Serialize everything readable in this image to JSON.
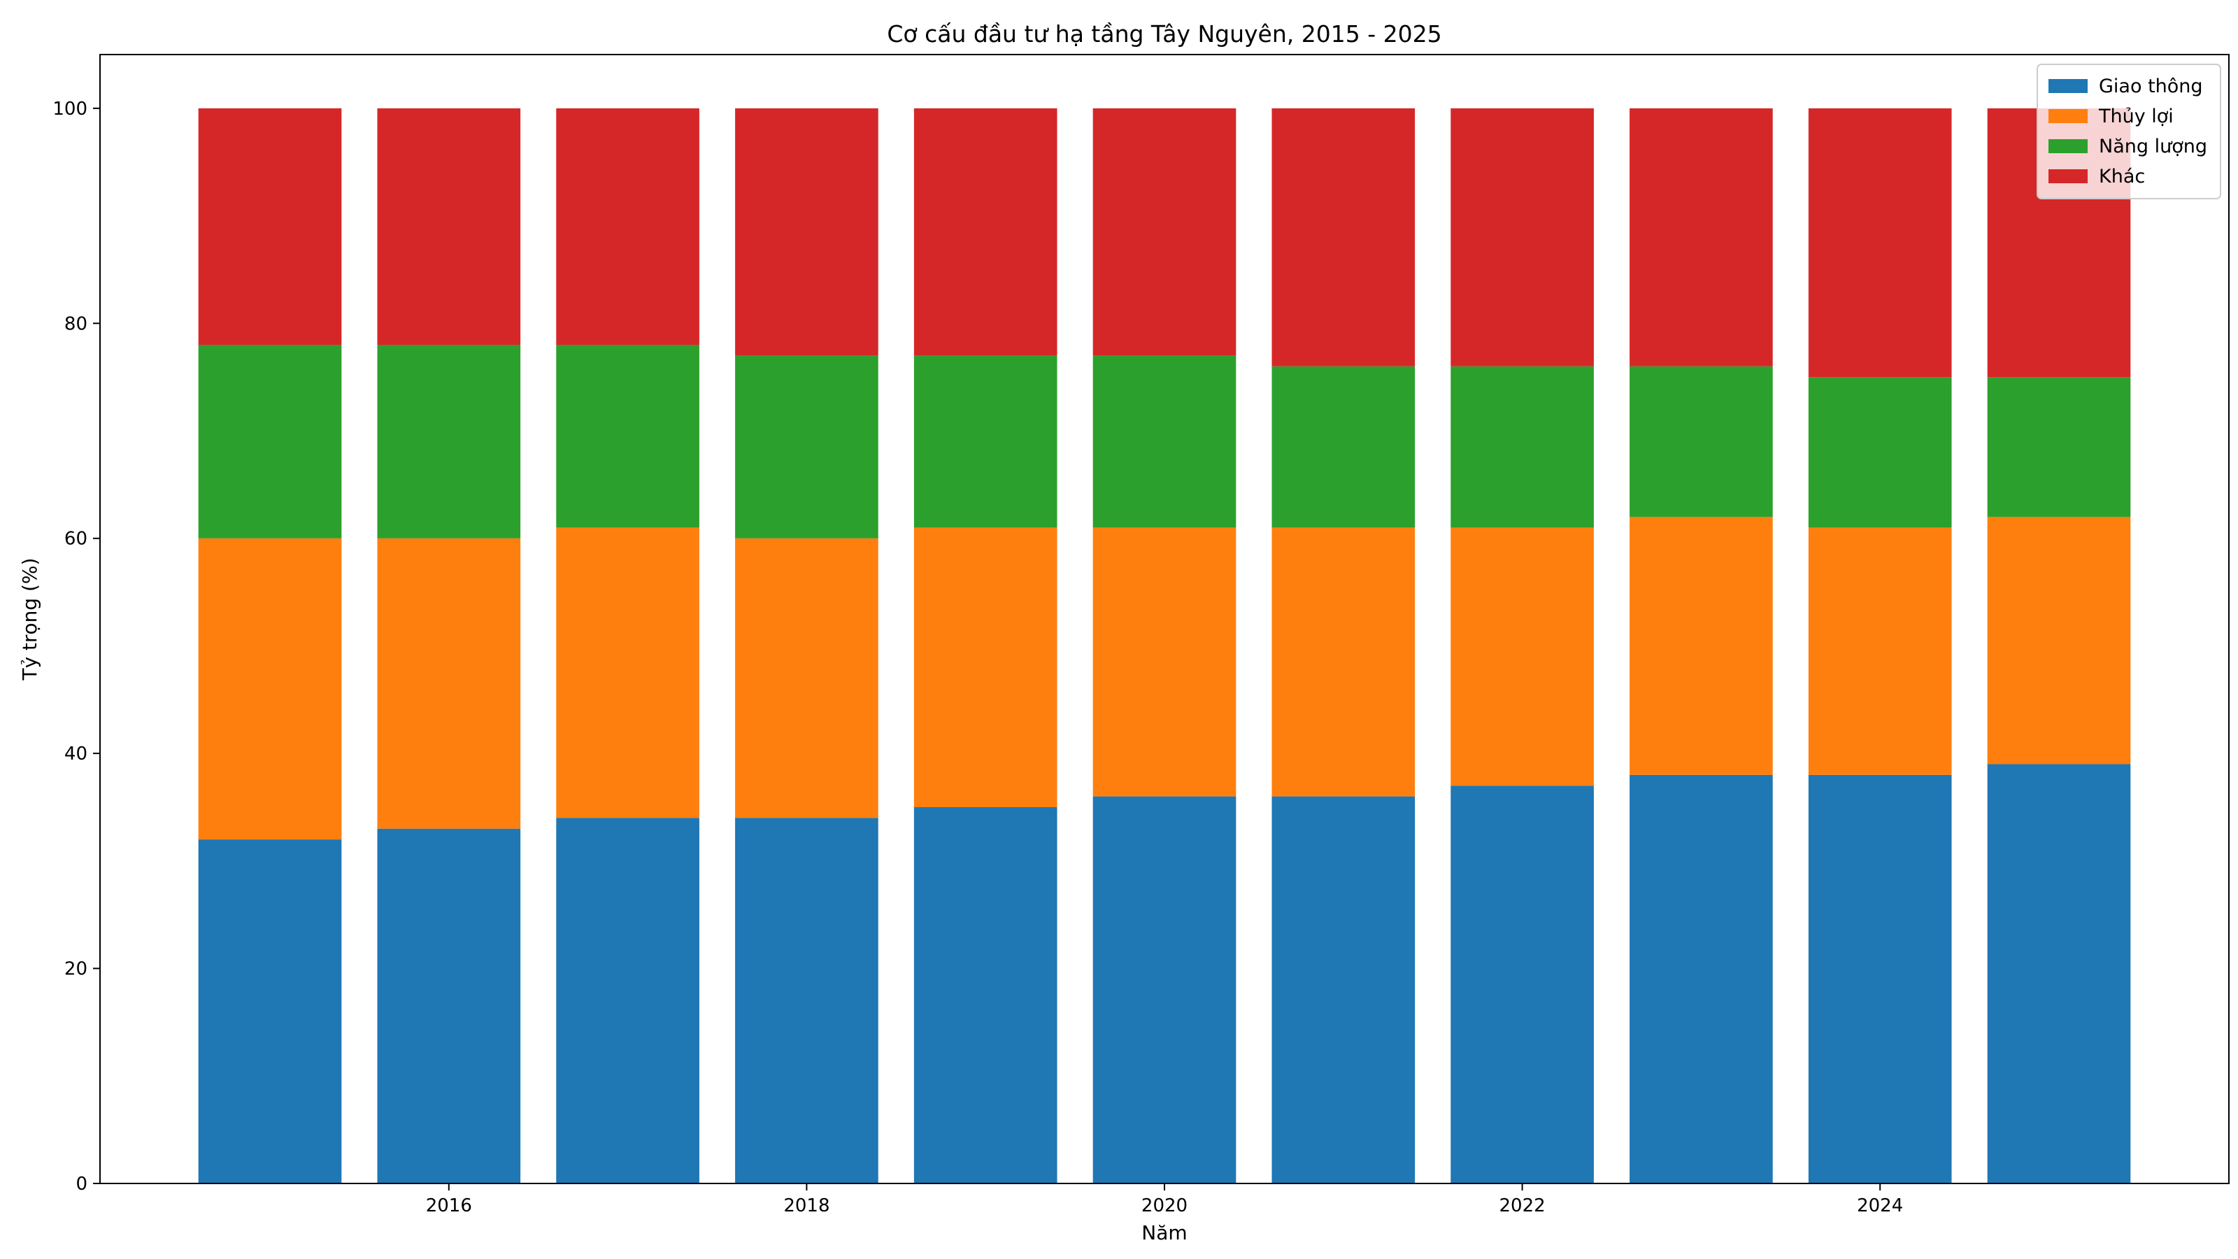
{
  "chart_data": {
    "type": "bar",
    "stacked": true,
    "title": "Cơ cấu đầu tư hạ tầng Tây Nguyên, 2015 - 2025",
    "xlabel": "Năm",
    "ylabel": "Tỷ trọng (%)",
    "categories": [
      2015,
      2016,
      2017,
      2018,
      2019,
      2020,
      2021,
      2022,
      2023,
      2024,
      2025
    ],
    "x_ticks": [
      2016,
      2018,
      2020,
      2022,
      2024
    ],
    "y_ticks": [
      0,
      20,
      40,
      60,
      80,
      100
    ],
    "xlim": [
      2014.05,
      2025.95
    ],
    "ylim": [
      0,
      105
    ],
    "grid": false,
    "legend_position": "top-right",
    "series": [
      {
        "name": "Giao thông",
        "color": "#1f77b4",
        "values": [
          32,
          33,
          34,
          34,
          35,
          36,
          36,
          37,
          38,
          38,
          39
        ]
      },
      {
        "name": "Thủy lợi",
        "color": "#ff7f0e",
        "values": [
          28,
          27,
          27,
          26,
          26,
          25,
          25,
          24,
          24,
          23,
          23
        ]
      },
      {
        "name": "Năng lượng",
        "color": "#2ca02c",
        "values": [
          18,
          18,
          17,
          17,
          16,
          16,
          15,
          15,
          14,
          14,
          13
        ]
      },
      {
        "name": "Khác",
        "color": "#d62728",
        "values": [
          22,
          22,
          22,
          23,
          23,
          23,
          24,
          24,
          24,
          25,
          25
        ]
      }
    ]
  }
}
